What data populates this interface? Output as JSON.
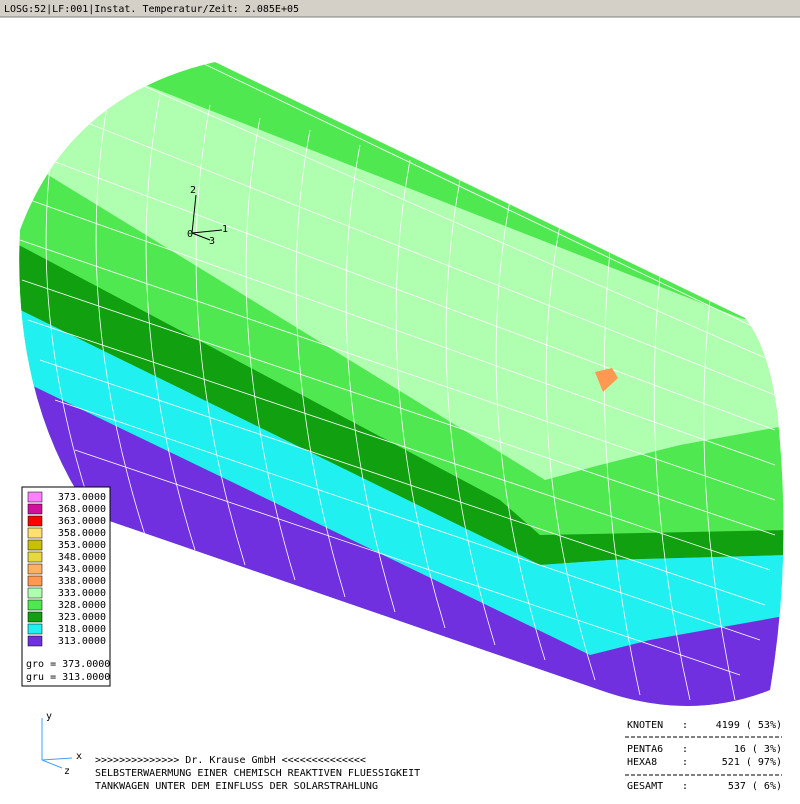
{
  "header": {
    "title": "LOSG:52|LF:001|Instat. Temperatur/Zeit: 2.085E+05"
  },
  "triad": {
    "labels": [
      "2",
      "1",
      "3",
      "0"
    ]
  },
  "legend": {
    "entries": [
      {
        "color": "#ff80ff",
        "label": "373.0000"
      },
      {
        "color": "#d0109a",
        "label": "368.0000"
      },
      {
        "color": "#ff0000",
        "label": "363.0000"
      },
      {
        "color": "#ffe070",
        "label": "358.0000"
      },
      {
        "color": "#c8c000",
        "label": "353.0000"
      },
      {
        "color": "#e8d840",
        "label": "348.0000"
      },
      {
        "color": "#ffb060",
        "label": "343.0000"
      },
      {
        "color": "#ff9850",
        "label": "338.0000"
      },
      {
        "color": "#b0ffb0",
        "label": "333.0000"
      },
      {
        "color": "#50e850",
        "label": "328.0000"
      },
      {
        "color": "#10a010",
        "label": "323.0000"
      },
      {
        "color": "#20f0f0",
        "label": "318.0000"
      },
      {
        "color": "#7030e0",
        "label": "313.0000"
      }
    ],
    "gro": "gro = 373.0000",
    "gru": "gru = 313.0000"
  },
  "axes": {
    "labels": [
      "y",
      "x",
      "z"
    ]
  },
  "footer": {
    "lines": [
      ">>>>>>>>>>>>>>     Dr. Krause GmbH     <<<<<<<<<<<<<<",
      "SELBSTERWAERMUNG EINER CHEMISCH REAKTIVEN FLUESSIGKEIT",
      "TANKWAGEN UNTER DEM EINFLUSS DER SOLARSTRAHLUNG"
    ]
  },
  "stats": {
    "rows": [
      {
        "label": "KNOTEN",
        "value": "4199 ( 53%)"
      },
      {
        "label": "PENTA6",
        "value": "16 (  3%)"
      },
      {
        "label": "HEXA8",
        "value": "521 ( 97%)"
      },
      {
        "label": "GESAMT",
        "value": "537 (  6%)"
      }
    ]
  }
}
